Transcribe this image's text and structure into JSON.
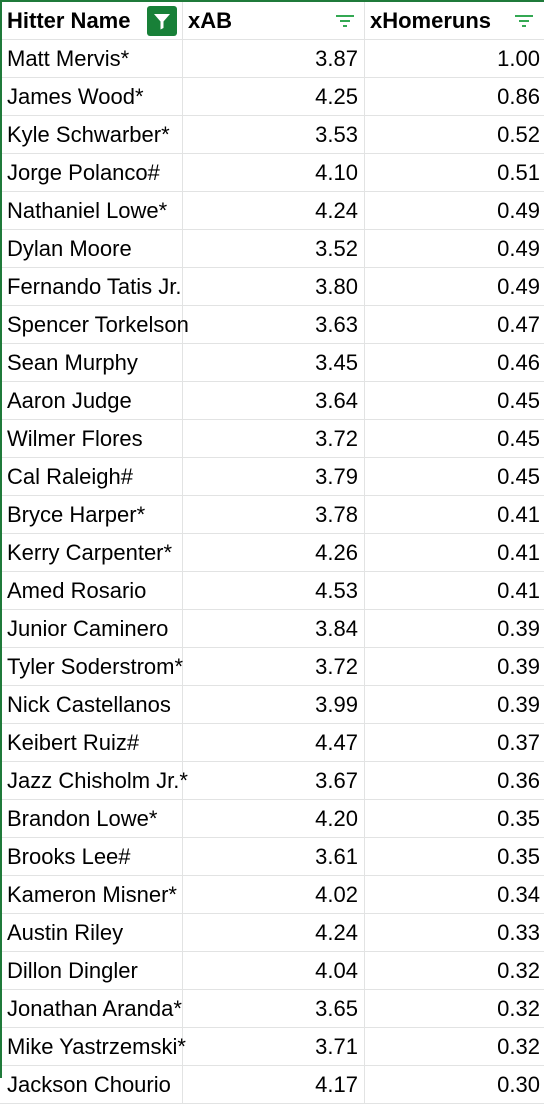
{
  "columns": {
    "name": "Hitter Name",
    "xab": "xAB",
    "xhr": "xHomeruns"
  },
  "icons": {
    "active_filter": "filter-funnel-icon",
    "column_filter": "filter-lines-icon"
  },
  "colors": {
    "accent": "#188038",
    "grid": "#e2e3e3",
    "filter_lines": "#34a853"
  },
  "rows": [
    {
      "name": "Matt Mervis*",
      "xab": "3.87",
      "xhr": "1.00"
    },
    {
      "name": "James Wood*",
      "xab": "4.25",
      "xhr": "0.86"
    },
    {
      "name": "Kyle Schwarber*",
      "xab": "3.53",
      "xhr": "0.52"
    },
    {
      "name": "Jorge Polanco#",
      "xab": "4.10",
      "xhr": "0.51"
    },
    {
      "name": "Nathaniel Lowe*",
      "xab": "4.24",
      "xhr": "0.49"
    },
    {
      "name": "Dylan Moore",
      "xab": "3.52",
      "xhr": "0.49"
    },
    {
      "name": "Fernando Tatis Jr.",
      "xab": "3.80",
      "xhr": "0.49"
    },
    {
      "name": "Spencer Torkelson",
      "xab": "3.63",
      "xhr": "0.47"
    },
    {
      "name": "Sean Murphy",
      "xab": "3.45",
      "xhr": "0.46"
    },
    {
      "name": "Aaron Judge",
      "xab": "3.64",
      "xhr": "0.45"
    },
    {
      "name": "Wilmer Flores",
      "xab": "3.72",
      "xhr": "0.45"
    },
    {
      "name": "Cal Raleigh#",
      "xab": "3.79",
      "xhr": "0.45"
    },
    {
      "name": "Bryce Harper*",
      "xab": "3.78",
      "xhr": "0.41"
    },
    {
      "name": "Kerry Carpenter*",
      "xab": "4.26",
      "xhr": "0.41"
    },
    {
      "name": "Amed Rosario",
      "xab": "4.53",
      "xhr": "0.41"
    },
    {
      "name": "Junior Caminero",
      "xab": "3.84",
      "xhr": "0.39"
    },
    {
      "name": "Tyler Soderstrom*",
      "xab": "3.72",
      "xhr": "0.39"
    },
    {
      "name": "Nick Castellanos",
      "xab": "3.99",
      "xhr": "0.39"
    },
    {
      "name": "Keibert Ruiz#",
      "xab": "4.47",
      "xhr": "0.37"
    },
    {
      "name": "Jazz Chisholm Jr.*",
      "xab": "3.67",
      "xhr": "0.36"
    },
    {
      "name": "Brandon Lowe*",
      "xab": "4.20",
      "xhr": "0.35"
    },
    {
      "name": "Brooks Lee#",
      "xab": "3.61",
      "xhr": "0.35"
    },
    {
      "name": "Kameron Misner*",
      "xab": "4.02",
      "xhr": "0.34"
    },
    {
      "name": "Austin Riley",
      "xab": "4.24",
      "xhr": "0.33"
    },
    {
      "name": "Dillon Dingler",
      "xab": "4.04",
      "xhr": "0.32"
    },
    {
      "name": "Jonathan Aranda*",
      "xab": "3.65",
      "xhr": "0.32"
    },
    {
      "name": "Mike Yastrzemski*",
      "xab": "3.71",
      "xhr": "0.32"
    },
    {
      "name": "Jackson Chourio",
      "xab": "4.17",
      "xhr": "0.30"
    }
  ]
}
